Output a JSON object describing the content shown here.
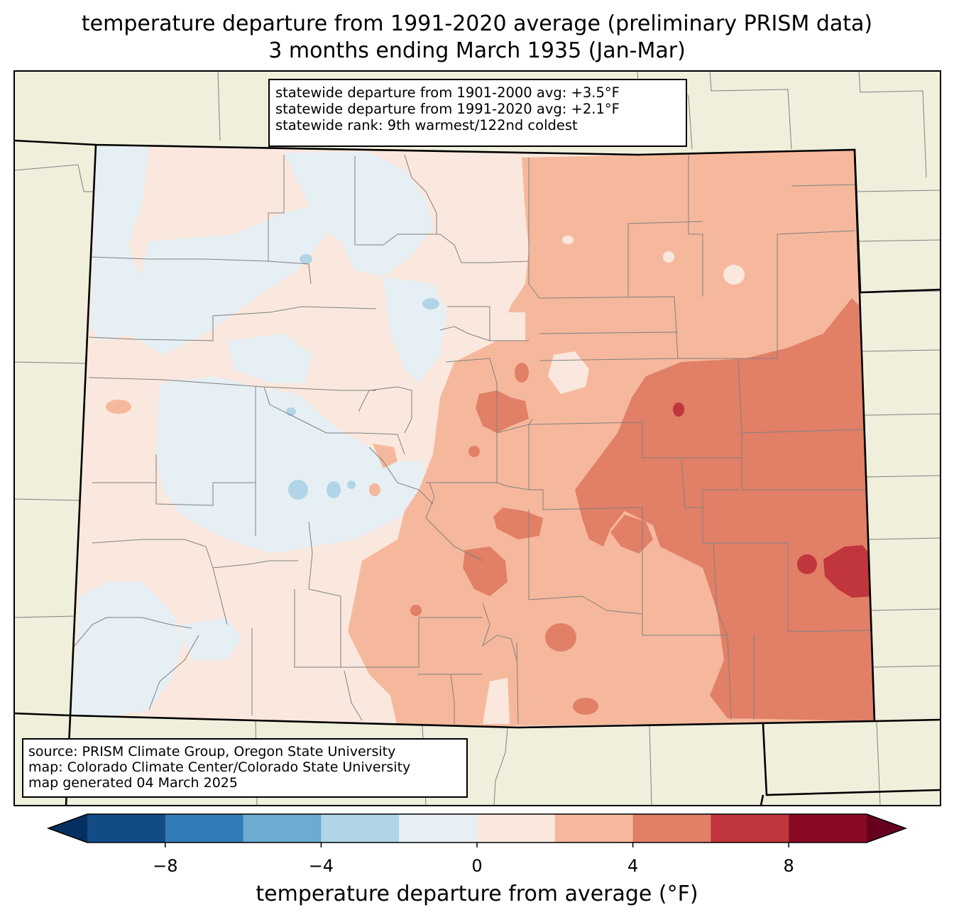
{
  "title": {
    "line1": "temperature departure from 1991-2020 average (preliminary PRISM data)",
    "line2": "3 months ending March 1935 (Jan-Mar)"
  },
  "stats_box": {
    "line1": "statewide departure from 1901-2000 avg: +3.5°F",
    "line2": "statewide departure from 1991-2020 avg: +2.1°F",
    "line3": "statewide rank: 9th warmest/122nd coldest"
  },
  "source_box": {
    "line1": "source: PRISM Climate Group, Oregon State University",
    "line2": "map: Colorado Climate Center/Colorado State University",
    "line3": "map generated 04 March 2025"
  },
  "colorbar": {
    "label": "temperature departure from average (°F)",
    "ticks": [
      {
        "value": -8,
        "label": "−8"
      },
      {
        "value": -4,
        "label": "−4"
      },
      {
        "value": 0,
        "label": "0"
      },
      {
        "value": 4,
        "label": "4"
      },
      {
        "value": 8,
        "label": "8"
      }
    ],
    "bins": [
      {
        "from": -12,
        "to": -10,
        "color": "#053061"
      },
      {
        "from": -10,
        "to": -8,
        "color": "#134b87"
      },
      {
        "from": -8,
        "to": -6,
        "color": "#327cb7"
      },
      {
        "from": -6,
        "to": -4,
        "color": "#6bacd0"
      },
      {
        "from": -4,
        "to": -2,
        "color": "#b1d5e7"
      },
      {
        "from": -2,
        "to": 0,
        "color": "#e6eff4"
      },
      {
        "from": 0,
        "to": 2,
        "color": "#fae8de"
      },
      {
        "from": 2,
        "to": 4,
        "color": "#f6b89c"
      },
      {
        "from": 4,
        "to": 6,
        "color": "#e17f67"
      },
      {
        "from": 6,
        "to": 8,
        "color": "#c0363c"
      },
      {
        "from": 8,
        "to": 10,
        "color": "#880a25"
      },
      {
        "from": 10,
        "to": 12,
        "color": "#67001f"
      }
    ],
    "range": [
      -10,
      10
    ]
  },
  "colors": {
    "land": "#efefdc",
    "boundary": "#000000",
    "county_line": "#808080"
  }
}
